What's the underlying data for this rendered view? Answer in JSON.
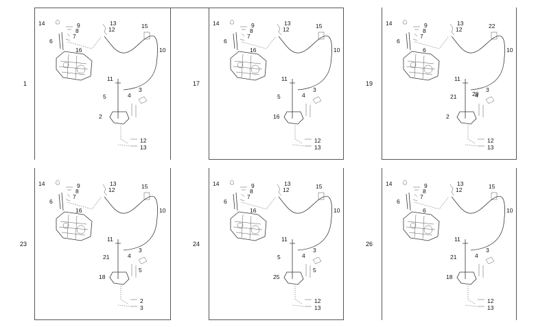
{
  "panels": [
    {
      "id": "1",
      "labels": {
        "a": "14",
        "b": "9",
        "c": "8",
        "d": "7",
        "e": "6",
        "f": "16",
        "g": "13",
        "h": "12",
        "i": "15",
        "j": "10",
        "k": "11",
        "l": "5",
        "m": "3",
        "n": "4",
        "o": "2",
        "p": "12",
        "q": "13"
      }
    },
    {
      "id": "17",
      "labels": {
        "a": "14",
        "b": "9",
        "c": "8",
        "d": "7",
        "e": "6",
        "f": "16",
        "g": "13",
        "h": "12",
        "i": "15",
        "j": "10",
        "k": "11",
        "l": "5",
        "m": "3",
        "n": "4",
        "o": "16",
        "p": "12",
        "q": "13"
      }
    },
    {
      "id": "19",
      "labels": {
        "a": "14",
        "b": "9",
        "c": "8",
        "d": "7",
        "e": "6",
        "f": "6",
        "g": "13",
        "h": "12",
        "i": "22",
        "j": "10",
        "k": "11",
        "l": "21",
        "r": "20",
        "m": "3",
        "n": "4",
        "o": "2",
        "p": "12",
        "q": "13"
      }
    },
    {
      "id": "23",
      "labels": {
        "a": "14",
        "b": "9",
        "c": "8",
        "d": "7",
        "e": "6",
        "f": "16",
        "g": "13",
        "h": "12",
        "i": "15",
        "j": "10",
        "k": "11",
        "l": "21",
        "m": "3",
        "n": "4",
        "s": "5",
        "o": "18",
        "p": "2",
        "q": "3"
      }
    },
    {
      "id": "24",
      "labels": {
        "a": "14",
        "b": "9",
        "c": "8",
        "d": "7",
        "e": "6",
        "f": "16",
        "g": "13",
        "h": "12",
        "i": "15",
        "j": "10",
        "k": "11",
        "l": "5",
        "m": "3",
        "n": "4",
        "s": "5",
        "o": "25",
        "p": "12",
        "q": "13"
      }
    },
    {
      "id": "26",
      "labels": {
        "a": "14",
        "b": "9",
        "c": "8",
        "d": "7",
        "e": "6",
        "f": "6",
        "g": "13",
        "h": "12",
        "i": "15",
        "j": "10",
        "k": "11",
        "l": "21",
        "m": "3",
        "n": "4",
        "o": "18",
        "p": "12",
        "q": "13"
      }
    }
  ]
}
